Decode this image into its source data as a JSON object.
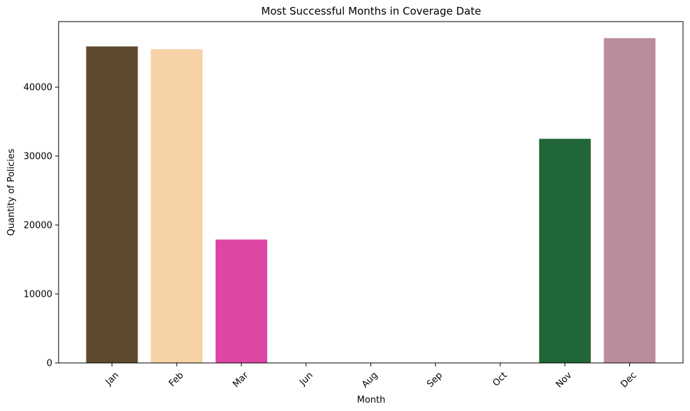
{
  "chart_data": {
    "type": "bar",
    "title": "Most Successful Months in Coverage Date",
    "xlabel": "Month",
    "ylabel": "Quantity of Policies",
    "categories": [
      "Jan",
      "Feb",
      "Mar",
      "Jun",
      "Aug",
      "Sep",
      "Oct",
      "Nov",
      "Dec"
    ],
    "values": [
      45900,
      45500,
      17900,
      0,
      0,
      0,
      0,
      32500,
      47100
    ],
    "colors": [
      "#5e4a2c",
      "#f6d2a6",
      "#de46a6",
      "#ffffff",
      "#ffffff",
      "#ffffff",
      "#ffffff",
      "#216638",
      "#bb8c99"
    ],
    "ylim": [
      0,
      49500
    ],
    "yticks": [
      0,
      10000,
      20000,
      30000,
      40000
    ],
    "ytick_labels": [
      "0",
      "10000",
      "20000",
      "30000",
      "40000"
    ],
    "xtick_rotation": 45,
    "grid": false,
    "legend": "none"
  }
}
